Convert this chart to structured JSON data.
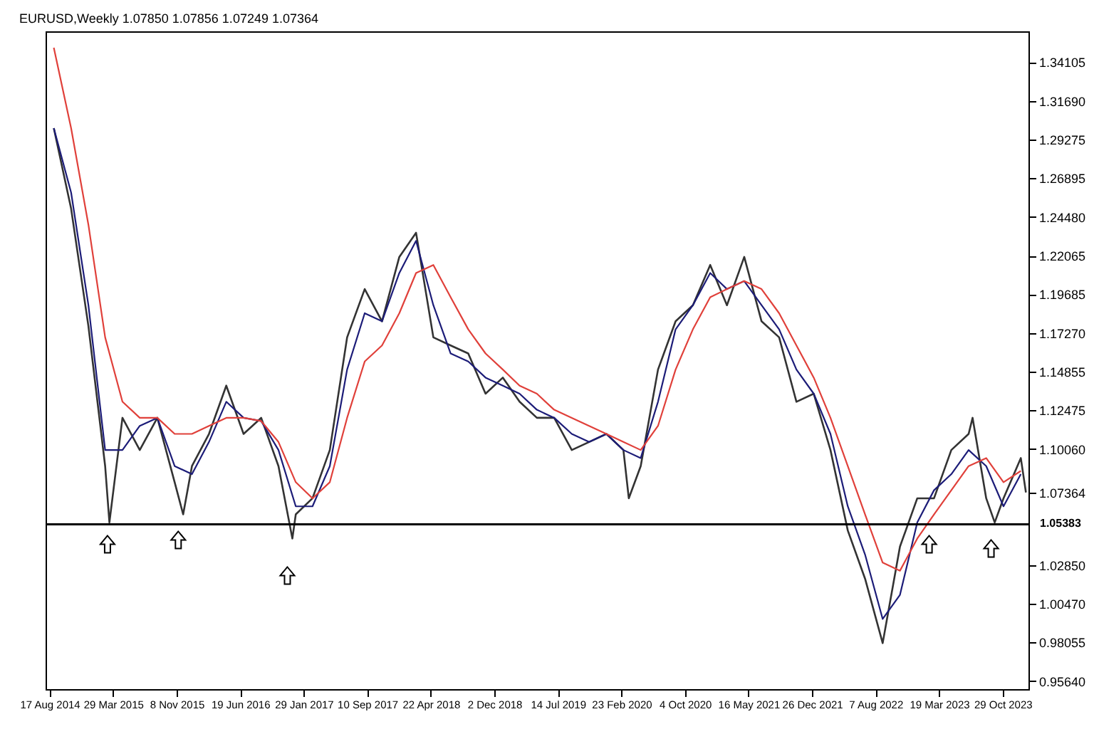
{
  "chart_data": {
    "type": "line",
    "title": "EURUSD,Weekly 1.07850 1.07856 1.07249 1.07364",
    "xlim": [
      "2014-08-03",
      "2024-01-28"
    ],
    "xticks": [
      {
        "value": "2014-08-17",
        "label": "17 Aug 2014"
      },
      {
        "value": "2015-03-29",
        "label": "29 Mar 2015"
      },
      {
        "value": "2015-11-08",
        "label": "8 Nov 2015"
      },
      {
        "value": "2016-06-19",
        "label": "19 Jun 2016"
      },
      {
        "value": "2017-01-29",
        "label": "29 Jan 2017"
      },
      {
        "value": "2017-09-10",
        "label": "10 Sep 2017"
      },
      {
        "value": "2018-04-22",
        "label": "22 Apr 2018"
      },
      {
        "value": "2018-12-02",
        "label": "2 Dec 2018"
      },
      {
        "value": "2019-07-14",
        "label": "14 Jul 2019"
      },
      {
        "value": "2020-02-23",
        "label": "23 Feb 2020"
      },
      {
        "value": "2020-10-04",
        "label": "4 Oct 2020"
      },
      {
        "value": "2021-05-16",
        "label": "16 May 2021"
      },
      {
        "value": "2021-12-26",
        "label": "26 Dec 2021"
      },
      {
        "value": "2022-08-07",
        "label": "7 Aug 2022"
      },
      {
        "value": "2023-03-19",
        "label": "19 Mar 2023"
      },
      {
        "value": "2023-10-29",
        "label": "29 Oct 2023"
      }
    ],
    "ylim": [
      0.9514,
      1.3602
    ],
    "yticks": [
      1.34105,
      {
        "value": 1.3169,
        "label": "1.31690"
      },
      1.29275,
      1.26895,
      {
        "value": 1.2448,
        "label": "1.24480"
      },
      1.22065,
      1.19685,
      {
        "value": 1.1727,
        "label": "1.17270"
      },
      1.14855,
      1.12475,
      {
        "value": 1.1006,
        "label": "1.10060"
      },
      1.07364,
      {
        "value": 1.0285,
        "label": "1.02850"
      },
      {
        "value": 1.0047,
        "label": "1.00470"
      },
      0.98055,
      {
        "value": 0.9564,
        "label": "0.95640"
      }
    ],
    "ref_lines": [
      {
        "axis": "y",
        "value": 1.05383,
        "label": "1.05383",
        "color": "#000000"
      }
    ],
    "series": [
      {
        "color": "#333333",
        "x": [
          "2014-09",
          "2014-11",
          "2015-01",
          "2015-03",
          "2015-03-16",
          "2015-05",
          "2015-07",
          "2015-09",
          "2015-11",
          "2015-12-01",
          "2016-01",
          "2016-03",
          "2016-05",
          "2016-07",
          "2016-09",
          "2016-11",
          "2016-12-20",
          "2017-01",
          "2017-03",
          "2017-05",
          "2017-07",
          "2017-09",
          "2017-11",
          "2018-01",
          "2018-03",
          "2018-05",
          "2018-07",
          "2018-09",
          "2018-11",
          "2019-01",
          "2019-03",
          "2019-05",
          "2019-07",
          "2019-09",
          "2019-11",
          "2020-01",
          "2020-03",
          "2020-03-20",
          "2020-05",
          "2020-07",
          "2020-09",
          "2020-11",
          "2021-01",
          "2021-03",
          "2021-05",
          "2021-07",
          "2021-09",
          "2021-11",
          "2022-01",
          "2022-03",
          "2022-05",
          "2022-07",
          "2022-09",
          "2022-11",
          "2023-01",
          "2023-03",
          "2023-05",
          "2023-07",
          "2023-07-15",
          "2023-09",
          "2023-10-01",
          "2023-11",
          "2024-01",
          "2024-01-19"
        ],
        "values": [
          1.3,
          1.25,
          1.177,
          1.09,
          1.055,
          1.12,
          1.1,
          1.12,
          1.08,
          1.06,
          1.09,
          1.11,
          1.14,
          1.11,
          1.12,
          1.09,
          1.045,
          1.06,
          1.07,
          1.1,
          1.17,
          1.2,
          1.18,
          1.22,
          1.235,
          1.17,
          1.165,
          1.16,
          1.135,
          1.145,
          1.13,
          1.12,
          1.12,
          1.1,
          1.105,
          1.11,
          1.1,
          1.07,
          1.09,
          1.15,
          1.18,
          1.19,
          1.215,
          1.19,
          1.22,
          1.18,
          1.17,
          1.13,
          1.135,
          1.1,
          1.05,
          1.02,
          0.98,
          1.04,
          1.07,
          1.07,
          1.1,
          1.11,
          1.12,
          1.07,
          1.055,
          1.07,
          1.095,
          1.07364
        ]
      },
      {
        "color": "#1c1c78",
        "values": [
          1.3,
          1.26,
          1.19,
          1.1,
          1.1,
          1.115,
          1.12,
          1.09,
          1.085,
          1.105,
          1.13,
          1.12,
          1.118,
          1.1,
          1.065,
          1.065,
          1.09,
          1.15,
          1.185,
          1.18,
          1.21,
          1.23,
          1.19,
          1.16,
          1.155,
          1.145,
          1.14,
          1.135,
          1.125,
          1.12,
          1.11,
          1.105,
          1.11,
          1.1,
          1.095,
          1.13,
          1.175,
          1.19,
          1.21,
          1.2,
          1.205,
          1.19,
          1.175,
          1.15,
          1.135,
          1.11,
          1.065,
          1.035,
          0.995,
          1.01,
          1.055,
          1.075,
          1.085,
          1.1,
          1.09,
          1.065,
          1.085
        ]
      },
      {
        "color": "#e0403a",
        "values": [
          1.35,
          1.3,
          1.24,
          1.17,
          1.13,
          1.12,
          1.12,
          1.11,
          1.11,
          1.115,
          1.12,
          1.12,
          1.118,
          1.105,
          1.08,
          1.07,
          1.08,
          1.12,
          1.155,
          1.165,
          1.185,
          1.21,
          1.215,
          1.195,
          1.175,
          1.16,
          1.15,
          1.14,
          1.135,
          1.125,
          1.12,
          1.115,
          1.11,
          1.105,
          1.1,
          1.115,
          1.15,
          1.175,
          1.195,
          1.2,
          1.205,
          1.2,
          1.185,
          1.165,
          1.145,
          1.12,
          1.09,
          1.06,
          1.03,
          1.025,
          1.045,
          1.06,
          1.075,
          1.09,
          1.095,
          1.08,
          1.087
        ]
      }
    ],
    "x": [
      "2014-09",
      "2014-11",
      "2015-01",
      "2015-03",
      "2015-05",
      "2015-07",
      "2015-09",
      "2015-11",
      "2016-01",
      "2016-03",
      "2016-05",
      "2016-07",
      "2016-09",
      "2016-11",
      "2017-01",
      "2017-03",
      "2017-05",
      "2017-07",
      "2017-09",
      "2017-11",
      "2018-01",
      "2018-03",
      "2018-05",
      "2018-07",
      "2018-09",
      "2018-11",
      "2019-01",
      "2019-03",
      "2019-05",
      "2019-07",
      "2019-09",
      "2019-11",
      "2020-01",
      "2020-03",
      "2020-05",
      "2020-07",
      "2020-09",
      "2020-11",
      "2021-01",
      "2021-03",
      "2021-05",
      "2021-07",
      "2021-09",
      "2021-11",
      "2022-01",
      "2022-03",
      "2022-05",
      "2022-07",
      "2022-09",
      "2022-11",
      "2023-01",
      "2023-03",
      "2023-05",
      "2023-07",
      "2023-09",
      "2023-11",
      "2024-01"
    ],
    "line_style": "solid",
    "grid": false
  }
}
